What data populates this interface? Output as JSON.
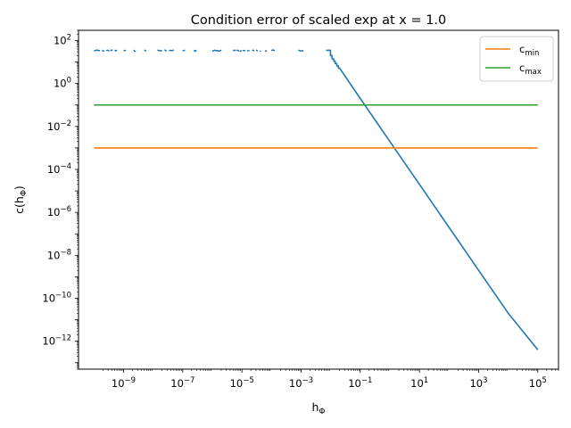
{
  "chart_data": {
    "type": "line",
    "title": "Condition error of scaled exp at x = 1.0",
    "xlabel": {
      "base": "h",
      "sub": "Φ"
    },
    "ylabel": {
      "pre": "c(h",
      "sub": "Φ",
      "post": ")"
    },
    "x_scale": "log",
    "y_scale": "log",
    "xlim": [
      3e-11,
      500000.0
    ],
    "ylim": [
      5e-14,
      300.0
    ],
    "x_tick_exponents": [
      -9,
      -7,
      -5,
      -3,
      -1,
      1,
      3,
      5
    ],
    "y_tick_exponents": [
      -12,
      -10,
      -8,
      -6,
      -4,
      -2,
      0,
      2
    ],
    "tick_base": "10",
    "grid": false,
    "legend_position": "top-right",
    "series": [
      {
        "key": "error",
        "color": "#1f77b4",
        "style": "line",
        "noise_segments": [
          [
            1e-10,
            1.6e-10
          ],
          [
            1.9e-10,
            2.2e-10
          ],
          [
            2.6e-10,
            3.3e-10
          ],
          [
            3.6e-10,
            4.2e-10
          ],
          [
            5e-10,
            6e-10
          ],
          [
            1e-09,
            1.2e-09
          ],
          [
            2.2e-09,
            2.6e-09
          ],
          [
            5e-09,
            5.8e-09
          ],
          [
            1.4e-08,
            2e-08
          ],
          [
            2.4e-08,
            2.8e-08
          ],
          [
            3.4e-08,
            5e-08
          ],
          [
            1e-07,
            1.2e-07
          ],
          [
            2.4e-07,
            2.9e-07
          ],
          [
            1e-06,
            2e-06
          ],
          [
            5e-06,
            6.2e-06
          ],
          [
            6.6e-06,
            8e-06
          ],
          [
            8.5e-06,
            9.6e-06
          ],
          [
            1.05e-05,
            1.3e-05
          ],
          [
            1.5e-05,
            1.8e-05
          ],
          [
            2.2e-05,
            2.6e-05
          ],
          [
            3e-05,
            3.4e-05
          ],
          [
            4e-05,
            4.4e-05
          ],
          [
            6e-05,
            7e-05
          ],
          [
            0.0001,
            0.00013
          ],
          [
            0.0008,
            0.0012
          ]
        ],
        "noise_level": 34,
        "points": [
          [
            0.007,
            35
          ],
          [
            0.0098,
            35
          ],
          [
            0.0099,
            20
          ],
          [
            0.011,
            20
          ],
          [
            0.0112,
            14
          ],
          [
            0.0125,
            14
          ],
          [
            0.0128,
            11
          ],
          [
            0.014,
            11
          ],
          [
            0.0143,
            8.5
          ],
          [
            0.016,
            8.5
          ],
          [
            0.0163,
            6.6
          ],
          [
            0.018,
            6.6
          ],
          [
            0.0184,
            5.2
          ],
          [
            0.02,
            5.2
          ],
          [
            0.1,
            0.2
          ],
          [
            1,
            0.002
          ],
          [
            10,
            2e-05
          ],
          [
            100,
            2e-07
          ],
          [
            1000,
            2e-09
          ],
          [
            10000,
            2e-11
          ],
          [
            100000,
            4e-13
          ]
        ]
      },
      {
        "key": "cmin",
        "label": {
          "base": "c",
          "sub": "min"
        },
        "color": "#ff7f0e",
        "points": [
          [
            1e-10,
            0.001
          ],
          [
            100000,
            0.001
          ]
        ]
      },
      {
        "key": "cmax",
        "label": {
          "base": "c",
          "sub": "max"
        },
        "color": "#2ca02c",
        "points": [
          [
            1e-10,
            0.1
          ],
          [
            100000,
            0.1
          ]
        ]
      }
    ]
  }
}
